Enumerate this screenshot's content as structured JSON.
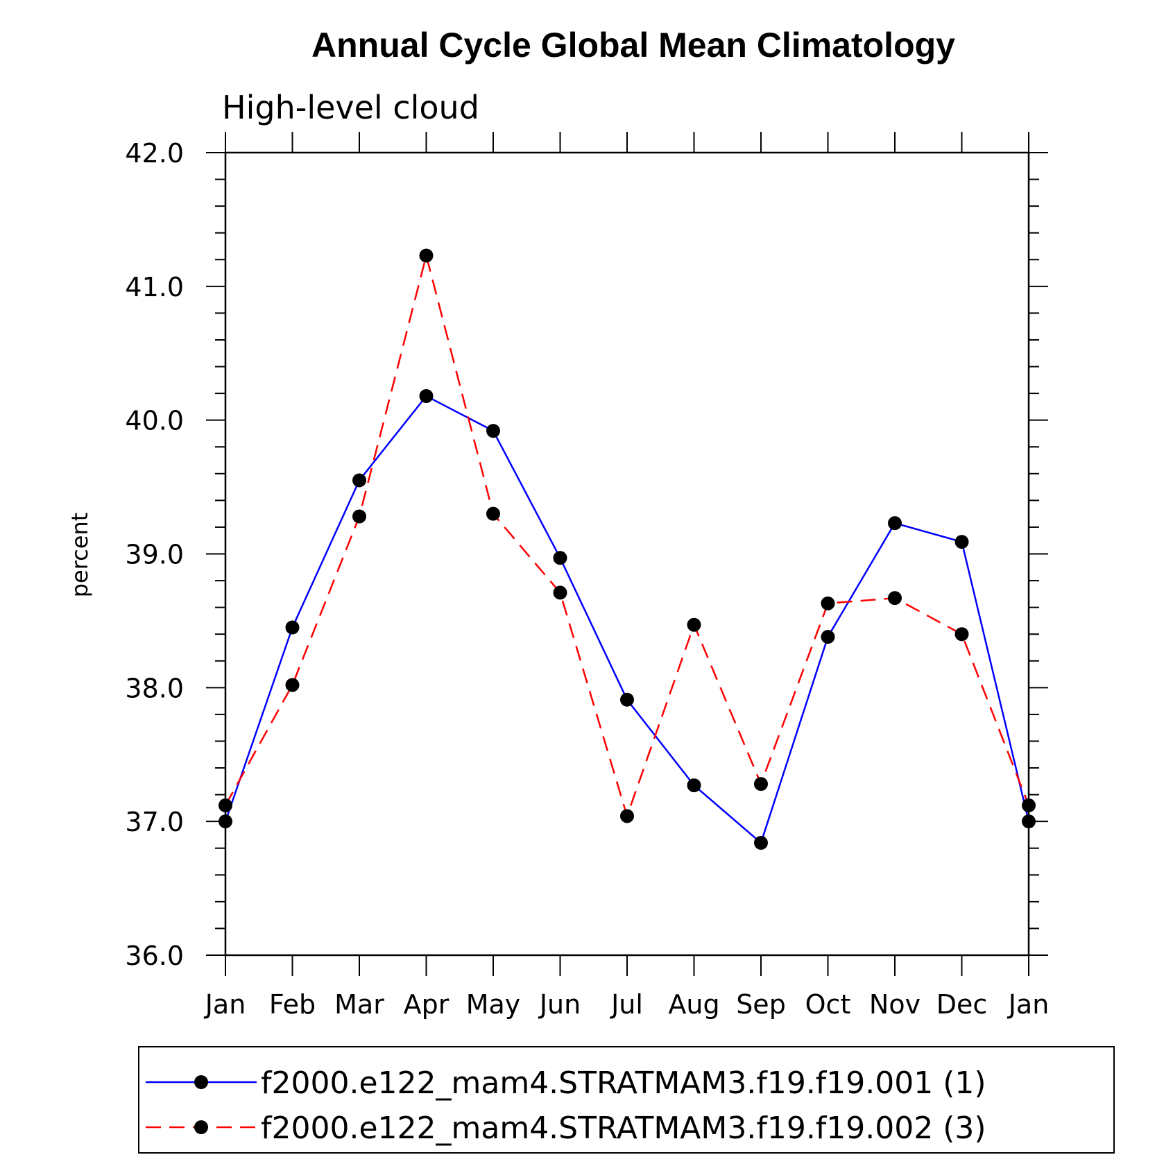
{
  "chart_data": {
    "type": "line",
    "title": "Annual Cycle Global Mean Climatology",
    "subtitle": "High-level cloud",
    "xlabel": "",
    "ylabel": "percent",
    "categories": [
      "Jan",
      "Feb",
      "Mar",
      "Apr",
      "May",
      "Jun",
      "Jul",
      "Aug",
      "Sep",
      "Oct",
      "Nov",
      "Dec",
      "Jan"
    ],
    "ylim": [
      36.0,
      42.0
    ],
    "yticks": [
      "36.0",
      "37.0",
      "38.0",
      "39.0",
      "40.0",
      "41.0",
      "42.0"
    ],
    "grid": false,
    "legend_position": "bottom",
    "series": [
      {
        "name": "f2000.e122_mam4.STRATMAM3.f19.f19.001 (1)",
        "color": "#0000ff",
        "line_style": "solid",
        "values": [
          37.0,
          38.45,
          39.55,
          40.18,
          39.92,
          38.97,
          37.91,
          37.27,
          36.84,
          38.38,
          39.23,
          39.09,
          37.0
        ]
      },
      {
        "name": "f2000.e122_mam4.STRATMAM3.f19.f19.002 (3)",
        "color": "#ff0000",
        "line_style": "dashed",
        "values": [
          37.12,
          38.02,
          39.28,
          41.23,
          39.3,
          38.71,
          37.04,
          38.47,
          37.28,
          38.63,
          38.67,
          38.4,
          37.12
        ]
      }
    ]
  }
}
